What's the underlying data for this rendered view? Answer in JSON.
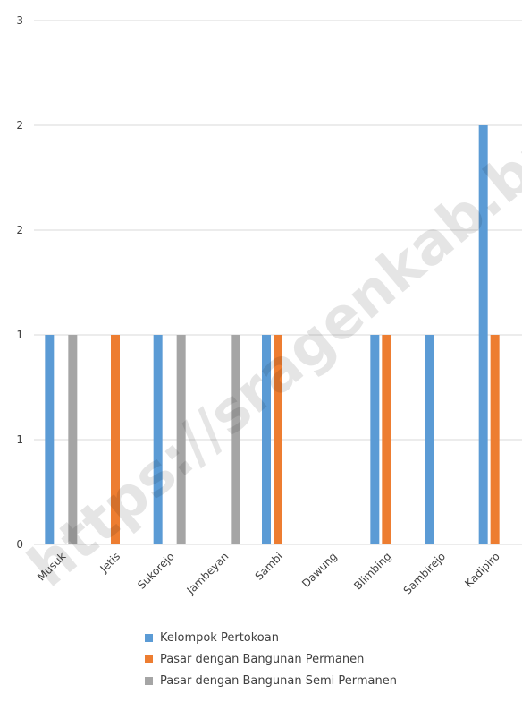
{
  "chart_data": {
    "type": "bar",
    "categories": [
      "Musuk",
      "Jetis",
      "Sukorejo",
      "Jambeyan",
      "Sambi",
      "Dawung",
      "Blimbing",
      "Sambirejo",
      "Kadipiro"
    ],
    "series": [
      {
        "name": "Kelompok Pertokoan",
        "color": "#5B9BD5",
        "values": [
          1,
          0,
          1,
          0,
          1,
          0,
          1,
          1,
          2
        ]
      },
      {
        "name": "Pasar dengan Bangunan Permanen",
        "color": "#ED7D31",
        "values": [
          0,
          1,
          0,
          0,
          1,
          0,
          1,
          0,
          1
        ]
      },
      {
        "name": "Pasar dengan Bangunan Semi Permanen",
        "color": "#A5A5A5",
        "values": [
          1,
          0,
          1,
          1,
          0,
          0,
          0,
          0,
          0
        ]
      }
    ],
    "ytick_labels": [
      "0",
      "1",
      "1",
      "2",
      "2",
      "3"
    ],
    "ylim": [
      0,
      2.5
    ],
    "grid": true,
    "legend_position": "bottom",
    "watermark": "https://sragenkab.bps.go.id"
  }
}
